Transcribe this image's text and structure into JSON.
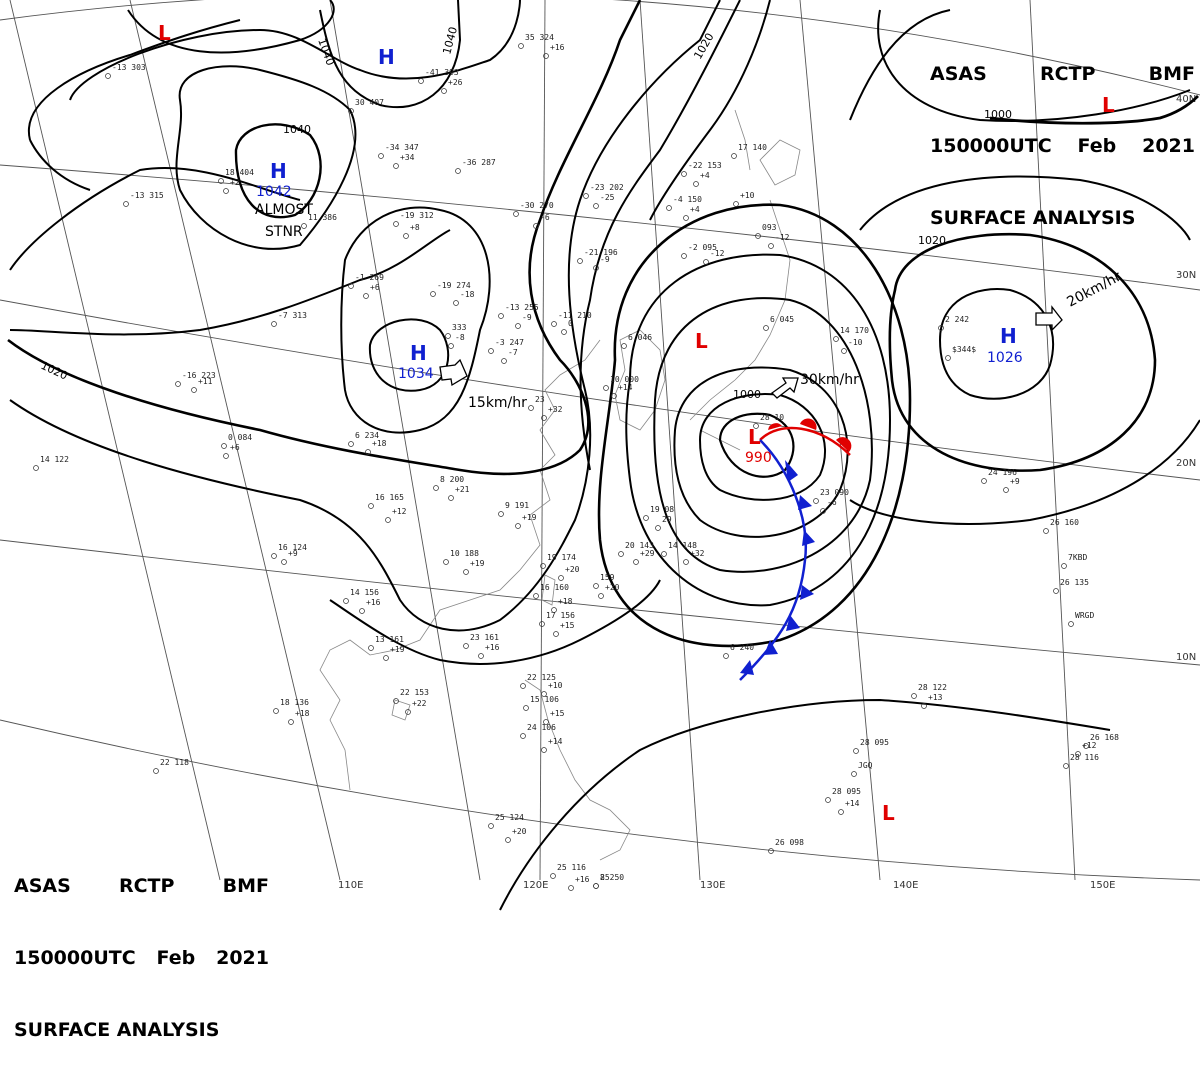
{
  "title": {
    "line1": [
      "ASAS",
      "RCTP",
      "BMF"
    ],
    "line2": [
      "150000UTC",
      "Feb",
      "2021"
    ],
    "line3": "SURFACE ANALYSIS"
  },
  "grid": {
    "latitudes": [
      "40N",
      "30N",
      "20N",
      "10N"
    ],
    "longitudes": [
      "110E",
      "120E",
      "130E",
      "140E",
      "150E"
    ]
  },
  "isobar_labels": [
    "1040",
    "1040",
    "1040",
    "1020",
    "1020",
    "1020",
    "1000",
    "1000"
  ],
  "systems": [
    {
      "type": "L",
      "color": "#e00000"
    },
    {
      "type": "H",
      "color": "#1020d0"
    },
    {
      "type": "H",
      "value": "1042",
      "color": "#1020d0",
      "note": [
        "ALMOST",
        "STNR"
      ]
    },
    {
      "type": "H",
      "value": "1034",
      "color": "#1020d0",
      "motion": "15km/hr"
    },
    {
      "type": "L",
      "color": "#e00000"
    },
    {
      "type": "L",
      "value": "990",
      "color": "#e00000",
      "motion": "30km/hr"
    },
    {
      "type": "H",
      "value": "1026",
      "color": "#1020d0",
      "motion": "20km/hr"
    },
    {
      "type": "L",
      "color": "#e00000"
    },
    {
      "type": "L",
      "color": "#e00000"
    }
  ],
  "fronts": {
    "warm_color": "#e00000",
    "cold_color": "#1020d0"
  },
  "stations": [
    "35 324",
    "+16",
    "-13 303",
    "-41 393",
    "+26",
    "30 407",
    "-34 347",
    "+34",
    "-36 287",
    "18 404",
    "+2",
    "-13 315",
    "-19 312",
    "+8",
    "11 386",
    "-30 270",
    "-6",
    "-22 153",
    "+4",
    "-23 202",
    "-25",
    "-4 150",
    "+4",
    "17 140",
    "093",
    "-12",
    "-21 196",
    "-9",
    "-2 095",
    "-12",
    "-1 269",
    "+6",
    "-19 274",
    "-18",
    "-13 255",
    "-9",
    "-11 210",
    "0",
    "-7 313",
    "333",
    "-8",
    "-3 247",
    "-7",
    "6 046",
    "6 045",
    "14 170",
    "-10",
    "-16 223",
    "+11",
    "0 084",
    "+6",
    "6 234",
    "+18",
    "23",
    "+32",
    "10 000",
    "+14",
    "2 242",
    "$344$",
    "14 122",
    "16 165",
    "+12",
    "8 200",
    "+21",
    "9 191",
    "+19",
    "19 08",
    "29",
    "23 090",
    "-6",
    "24 196",
    "+9",
    "20 143",
    "+29",
    "14 148",
    "+32",
    "10 188",
    "+19",
    "19 174",
    "+20",
    "159",
    "+20",
    "16 124",
    "+9",
    "14 156",
    "+16",
    "16 160",
    "+18",
    "17 156",
    "+15",
    "13 161",
    "+19",
    "23 161",
    "+16",
    "18 136",
    "+18",
    "22 153",
    "+22",
    "22 125",
    "+10",
    "15 106",
    "+15",
    "24 106",
    "+14",
    "22 118",
    "25 124",
    "+20",
    "25 116",
    "+16",
    "26 160",
    "7KBD",
    "26 135",
    "WRGD",
    "28 122",
    "+13",
    "28 095",
    "JGQ",
    "28 095",
    "+14",
    "26 098",
    "28 116",
    "+12",
    "26 168",
    "+10",
    "28 10",
    "6 240",
    "8 250",
    "25"
  ]
}
